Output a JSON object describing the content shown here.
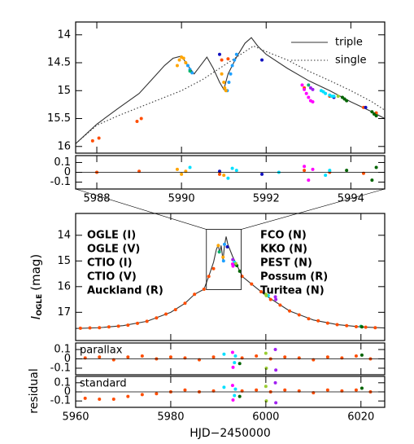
{
  "chart_data": [
    {
      "type": "scatter",
      "xlim": [
        5987.5,
        5994.8
      ],
      "ylim": [
        13.77,
        16.12
      ],
      "y_inverted": true,
      "yticks": [
        14,
        14.5,
        15,
        15.5,
        16
      ],
      "lines": [
        {
          "name": "triple",
          "style": "solid",
          "color": "#333333",
          "x": [
            5987.5,
            5988,
            5988.5,
            5989,
            5989.3,
            5989.6,
            5989.8,
            5990.0,
            5990.15,
            5990.3,
            5990.45,
            5990.6,
            5990.75,
            5990.9,
            5991.0,
            5991.1,
            5991.3,
            5991.5,
            5991.65,
            5991.8,
            5992.0,
            5992.5,
            5993,
            5993.5,
            5994,
            5994.5,
            5994.8
          ],
          "values": [
            15.95,
            15.6,
            15.32,
            15.05,
            14.8,
            14.55,
            14.42,
            14.38,
            14.55,
            14.7,
            14.55,
            14.4,
            14.6,
            14.85,
            14.98,
            14.7,
            14.4,
            14.15,
            14.05,
            14.2,
            14.35,
            14.6,
            14.82,
            15.0,
            15.2,
            15.38,
            15.5
          ]
        },
        {
          "name": "single",
          "style": "dotted",
          "color": "#333333",
          "x": [
            5987.5,
            5988,
            5988.5,
            5989,
            5989.5,
            5990,
            5990.5,
            5991,
            5991.4,
            5991.7,
            5992,
            5992.5,
            5993,
            5993.5,
            5994,
            5994.5,
            5994.8
          ],
          "values": [
            15.95,
            15.62,
            15.45,
            15.3,
            15.15,
            15.0,
            14.8,
            14.55,
            14.35,
            14.2,
            14.3,
            14.45,
            14.65,
            14.82,
            15.0,
            15.2,
            15.35
          ]
        }
      ],
      "series": [
        {
          "color": "#ff4d00",
          "x": [
            5987.9,
            5988.05,
            5988.95,
            5989.05,
            5990.95,
            5991.1,
            5992.9,
            5993.5,
            5994.3,
            5994.6
          ],
          "values": [
            15.9,
            15.85,
            15.55,
            15.5,
            14.45,
            14.43,
            14.95,
            15.1,
            15.3,
            15.4
          ]
        },
        {
          "color": "#1010c0",
          "x": [
            5990.9,
            5991.9,
            5993.6,
            5994.35
          ],
          "values": [
            14.35,
            14.45,
            15.12,
            15.3
          ]
        },
        {
          "color": "#1ea0ff",
          "x": [
            5990.15,
            5990.2,
            5990.25,
            5991.08,
            5991.12,
            5991.16,
            5991.2,
            5991.25,
            5991.3
          ],
          "values": [
            14.55,
            14.62,
            14.68,
            15.0,
            14.85,
            14.7,
            14.55,
            14.45,
            14.35
          ]
        },
        {
          "color": "#00b46e",
          "x": [
            5990.2,
            5993.0
          ],
          "values": [
            14.65,
            14.9
          ]
        },
        {
          "color": "#ffa500",
          "x": [
            5989.9,
            5989.95,
            5990.0,
            5990.05,
            5990.1,
            5990.95,
            5991.0,
            5991.02,
            5991.05
          ],
          "values": [
            14.55,
            14.45,
            14.4,
            14.42,
            14.5,
            14.7,
            14.85,
            14.95,
            15.0
          ]
        },
        {
          "color": "#a020f0",
          "x": [
            5993.05,
            5993.1
          ],
          "values": [
            14.95,
            14.98
          ]
        },
        {
          "color": "#006400",
          "x": [
            5993.8,
            5993.85,
            5993.9,
            5994.5,
            5994.55,
            5994.6
          ],
          "values": [
            15.12,
            15.15,
            15.18,
            15.38,
            15.42,
            15.45
          ]
        },
        {
          "color": "#00e0ff",
          "x": [
            5993.3,
            5993.35,
            5993.4,
            5993.5,
            5993.55,
            5993.6
          ],
          "values": [
            15.0,
            15.02,
            15.05,
            15.08,
            15.1,
            15.1
          ]
        },
        {
          "color": "#ff00ff",
          "x": [
            5992.85,
            5992.9,
            5992.95,
            5993.0,
            5993.05,
            5993.1
          ],
          "values": [
            14.9,
            14.98,
            15.05,
            15.12,
            15.18,
            15.2
          ]
        },
        {
          "color": "#9acd32",
          "x": [
            5993.7
          ],
          "values": [
            15.1
          ]
        }
      ]
    },
    {
      "type": "scatter",
      "xlim": [
        5987.5,
        5994.8
      ],
      "ylim": [
        -0.17,
        0.17
      ],
      "zero_line": true,
      "yticks": [
        -0.1,
        0,
        0.1
      ],
      "xticks": [
        5988,
        5990,
        5992,
        5994
      ],
      "series": [
        {
          "color": "#ff4d00",
          "x": [
            5988,
            5989,
            5990.9,
            5992.9,
            5993.5,
            5994.3
          ],
          "values": [
            0.0,
            0.01,
            -0.02,
            0.02,
            0.0,
            -0.01
          ]
        },
        {
          "color": "#ffa500",
          "x": [
            5989.9,
            5990.0,
            5990.1,
            5991.0
          ],
          "values": [
            0.03,
            -0.02,
            0.01,
            -0.03
          ]
        },
        {
          "color": "#00e0ff",
          "x": [
            5990.2,
            5991.1,
            5991.2,
            5991.3,
            5992.3,
            5993.4,
            5993.5
          ],
          "values": [
            0.05,
            -0.06,
            0.04,
            0.02,
            0.0,
            -0.03,
            0.02
          ]
        },
        {
          "color": "#ff00ff",
          "x": [
            5992.9,
            5993.0,
            5993.1
          ],
          "values": [
            0.06,
            -0.08,
            0.03
          ]
        },
        {
          "color": "#006400",
          "x": [
            5993.9,
            5994.5,
            5994.6
          ],
          "values": [
            0.02,
            -0.08,
            0.05
          ]
        },
        {
          "color": "#1010c0",
          "x": [
            5990.9,
            5991.9
          ],
          "values": [
            0.01,
            -0.02
          ]
        }
      ]
    },
    {
      "type": "scatter",
      "xlim": [
        5960,
        6025
      ],
      "ylim": [
        13.15,
        18.1
      ],
      "y_inverted": true,
      "yticks": [
        14,
        15,
        16,
        17
      ],
      "ylabel": "I",
      "ylabel_subscript": "OGLE",
      "ylabel_unit": "(mag)",
      "lines": [
        {
          "style": "solid",
          "color": "#333333",
          "x": [
            5960,
            5965,
            5970,
            5975,
            5980,
            5983,
            5985,
            5987,
            5988,
            5989,
            5989.6,
            5990.0,
            5990.3,
            5990.6,
            5991.0,
            5991.3,
            5991.65,
            5992.0,
            5993,
            5994,
            5994.8,
            5995,
            5997,
            6000,
            6005,
            6010,
            6015,
            6020,
            6025
          ],
          "values": [
            17.63,
            17.6,
            17.52,
            17.35,
            17.0,
            16.65,
            16.3,
            16.1,
            15.6,
            15.05,
            14.55,
            14.38,
            14.7,
            14.4,
            14.98,
            14.4,
            14.05,
            14.35,
            14.82,
            15.2,
            15.5,
            15.6,
            15.9,
            16.35,
            16.95,
            17.3,
            17.48,
            17.57,
            17.61
          ]
        }
      ],
      "series": [
        {
          "name": "OGLE (I)",
          "color": "#ff4d00",
          "x": [
            5961,
            5963,
            5965,
            5967,
            5969,
            5971,
            5973,
            5975,
            5977,
            5979,
            5981,
            5983,
            5985,
            5987,
            5988,
            5989,
            5995,
            5997,
            5999,
            6001,
            6003,
            6005,
            6007,
            6009,
            6011,
            6013,
            6015,
            6017,
            6019,
            6021,
            6023
          ],
          "values": [
            17.62,
            17.61,
            17.6,
            17.57,
            17.54,
            17.5,
            17.43,
            17.35,
            17.22,
            17.07,
            16.9,
            16.65,
            16.3,
            16.1,
            15.6,
            15.3,
            15.6,
            15.9,
            16.2,
            16.5,
            16.72,
            16.95,
            17.1,
            17.25,
            17.33,
            17.42,
            17.48,
            17.52,
            17.56,
            17.58,
            17.6
          ]
        },
        {
          "name": "OGLE (V)",
          "color": "#1010c0",
          "x": [
            5991.9,
            5993.6
          ],
          "values": [
            14.45,
            15.12
          ]
        },
        {
          "name": "CTIO (I)",
          "color": "#1ea0ff",
          "x": [
            5991.1,
            5991.3
          ],
          "values": [
            15.0,
            14.35
          ]
        },
        {
          "name": "CTIO (V)",
          "color": "#00b46e",
          "x": [
            5990.2,
            6020
          ],
          "values": [
            14.65,
            17.55
          ]
        },
        {
          "name": "Auckland (R)",
          "color": "#ffa500",
          "x": [
            5990.0,
            5991.0
          ],
          "values": [
            14.4,
            14.85
          ]
        },
        {
          "name": "FCO (N)",
          "color": "#a020f0",
          "x": [
            5993.05,
            6002,
            6002.1
          ],
          "values": [
            14.95,
            16.4,
            16.5
          ]
        },
        {
          "name": "KKO (N)",
          "color": "#006400",
          "x": [
            5993.9,
            5994.5,
            6020.2
          ],
          "values": [
            15.18,
            15.4,
            17.57
          ]
        },
        {
          "name": "PEST (N)",
          "color": "#00e0ff",
          "x": [
            5993.4,
            6000.5
          ],
          "values": [
            15.05,
            16.35
          ]
        },
        {
          "name": "Possum (R)",
          "color": "#ff00ff",
          "x": [
            5993.0,
            5993.1
          ],
          "values": [
            15.12,
            15.2
          ]
        },
        {
          "name": "Turitea (N)",
          "color": "#9acd32",
          "x": [
            5993.7,
            6000,
            6000.1
          ],
          "values": [
            15.1,
            16.3,
            16.35
          ]
        }
      ]
    },
    {
      "type": "scatter",
      "xlim": [
        5960,
        6025
      ],
      "ylim": [
        -0.17,
        0.17
      ],
      "zero_line": true,
      "yticks": [
        -0.1,
        0,
        0.1
      ],
      "label": "parallax",
      "series": [
        {
          "color": "#ff4d00",
          "x": [
            5962,
            5965,
            5968,
            5971,
            5974,
            5977,
            5980,
            5983,
            5986,
            5989,
            5995,
            5998,
            6001,
            6004,
            6007,
            6010,
            6013,
            6016,
            6019,
            6022
          ],
          "values": [
            0.01,
            0.02,
            -0.01,
            0.02,
            0.03,
            0.0,
            0.02,
            0.01,
            -0.01,
            0.02,
            0.01,
            0.03,
            0.0,
            0.02,
            0.01,
            -0.01,
            0.02,
            0.01,
            0.03,
            0.0
          ]
        },
        {
          "color": "#00e0ff",
          "x": [
            5991.2,
            5993.4,
            5993.6
          ],
          "values": [
            0.05,
            -0.04,
            0.03
          ]
        },
        {
          "color": "#ff00ff",
          "x": [
            5993.0,
            5993.1
          ],
          "values": [
            0.07,
            -0.09
          ]
        },
        {
          "color": "#a020f0",
          "x": [
            6002,
            6002.1
          ],
          "values": [
            0.1,
            -0.12
          ]
        },
        {
          "color": "#9acd32",
          "x": [
            6000,
            6000.1
          ],
          "values": [
            0.06,
            -0.1
          ]
        },
        {
          "color": "#006400",
          "x": [
            5994.5,
            6020.2
          ],
          "values": [
            -0.05,
            0.04
          ]
        }
      ]
    },
    {
      "type": "scatter",
      "xlim": [
        5960,
        6025
      ],
      "ylim": [
        -0.17,
        0.17
      ],
      "zero_line": true,
      "yticks": [
        -0.1,
        0,
        0.1
      ],
      "xticks": [
        5960,
        5980,
        6000,
        6020
      ],
      "label": "standard",
      "ylabel": "residual",
      "xlabel": "HJD−2450000",
      "series": [
        {
          "color": "#ff4d00",
          "x": [
            5962,
            5965,
            5968,
            5971,
            5974,
            5977,
            5980,
            5983,
            5986,
            5989,
            5995,
            5998,
            6001,
            6004,
            6007,
            6010,
            6013,
            6016,
            6019,
            6022
          ],
          "values": [
            -0.07,
            -0.08,
            -0.08,
            -0.05,
            -0.03,
            -0.02,
            0.0,
            0.02,
            0.0,
            0.01,
            0.01,
            0.02,
            0.0,
            0.02,
            0.01,
            -0.01,
            0.02,
            0.01,
            0.02,
            0.0
          ]
        },
        {
          "color": "#00e0ff",
          "x": [
            5991.2,
            5993.4,
            5993.6
          ],
          "values": [
            0.05,
            -0.04,
            0.03
          ]
        },
        {
          "color": "#ff00ff",
          "x": [
            5993.0,
            5993.1
          ],
          "values": [
            0.07,
            -0.09
          ]
        },
        {
          "color": "#a020f0",
          "x": [
            6002,
            6002.1
          ],
          "values": [
            0.1,
            -0.12
          ]
        },
        {
          "color": "#9acd32",
          "x": [
            6000,
            6000.1
          ],
          "values": [
            0.06,
            -0.1
          ]
        },
        {
          "color": "#006400",
          "x": [
            5994.5,
            6020.2
          ],
          "values": [
            -0.05,
            0.04
          ]
        }
      ]
    }
  ]
}
